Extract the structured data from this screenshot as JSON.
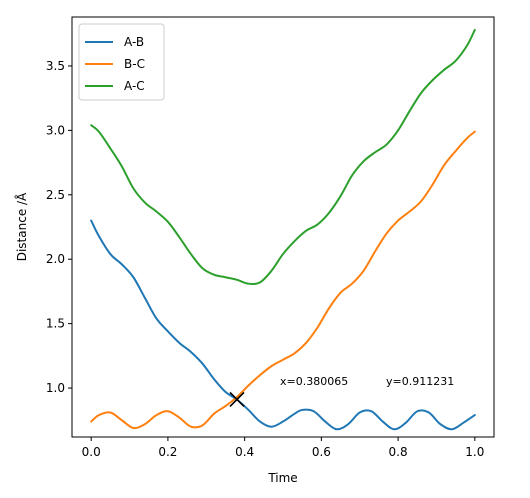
{
  "chart_data": {
    "type": "line",
    "title": "",
    "xlabel": "Time",
    "ylabel": "Distance /Å",
    "xlim": [
      -0.05,
      1.05
    ],
    "ylim": [
      0.62,
      3.88
    ],
    "xticks": [
      0.0,
      0.2,
      0.4,
      0.6,
      0.8,
      1.0
    ],
    "xtick_labels": [
      "0.0",
      "0.2",
      "0.4",
      "0.6",
      "0.8",
      "1.0"
    ],
    "yticks": [
      1.0,
      1.5,
      2.0,
      2.5,
      3.0,
      3.5
    ],
    "ytick_labels": [
      "1.0",
      "1.5",
      "2.0",
      "2.5",
      "3.0",
      "3.5"
    ],
    "grid": false,
    "legend_position": "top-left",
    "series": [
      {
        "name": "A-B",
        "color": "#1f77b4",
        "x": [
          0.0,
          0.02,
          0.05,
          0.08,
          0.11,
          0.14,
          0.17,
          0.2,
          0.23,
          0.26,
          0.29,
          0.32,
          0.35,
          0.38,
          0.41,
          0.44,
          0.47,
          0.5,
          0.53,
          0.55,
          0.58,
          0.61,
          0.64,
          0.67,
          0.7,
          0.73,
          0.76,
          0.79,
          0.82,
          0.85,
          0.88,
          0.91,
          0.94,
          0.97,
          1.0
        ],
        "y": [
          2.3,
          2.18,
          2.04,
          1.96,
          1.86,
          1.7,
          1.54,
          1.44,
          1.35,
          1.28,
          1.19,
          1.07,
          0.97,
          0.91,
          0.83,
          0.74,
          0.7,
          0.74,
          0.8,
          0.83,
          0.82,
          0.74,
          0.68,
          0.72,
          0.81,
          0.82,
          0.74,
          0.68,
          0.73,
          0.82,
          0.81,
          0.72,
          0.68,
          0.73,
          0.79
        ]
      },
      {
        "name": "B-C",
        "color": "#ff7f0e",
        "x": [
          0.0,
          0.02,
          0.05,
          0.08,
          0.11,
          0.14,
          0.17,
          0.2,
          0.23,
          0.26,
          0.29,
          0.32,
          0.35,
          0.38,
          0.41,
          0.44,
          0.47,
          0.5,
          0.53,
          0.56,
          0.59,
          0.62,
          0.65,
          0.68,
          0.71,
          0.74,
          0.77,
          0.8,
          0.83,
          0.86,
          0.89,
          0.92,
          0.95,
          0.98,
          1.0
        ],
        "y": [
          0.74,
          0.79,
          0.81,
          0.75,
          0.69,
          0.72,
          0.79,
          0.82,
          0.77,
          0.7,
          0.71,
          0.8,
          0.86,
          0.93,
          1.02,
          1.1,
          1.17,
          1.22,
          1.27,
          1.35,
          1.47,
          1.62,
          1.74,
          1.81,
          1.91,
          2.06,
          2.2,
          2.3,
          2.37,
          2.45,
          2.58,
          2.73,
          2.84,
          2.94,
          2.99
        ]
      },
      {
        "name": "A-C",
        "color": "#2ca02c",
        "x": [
          0.0,
          0.02,
          0.05,
          0.08,
          0.11,
          0.14,
          0.17,
          0.2,
          0.23,
          0.26,
          0.29,
          0.32,
          0.35,
          0.38,
          0.41,
          0.44,
          0.47,
          0.5,
          0.53,
          0.56,
          0.59,
          0.62,
          0.65,
          0.68,
          0.71,
          0.74,
          0.77,
          0.8,
          0.83,
          0.86,
          0.89,
          0.92,
          0.95,
          0.98,
          1.0
        ],
        "y": [
          3.04,
          2.99,
          2.86,
          2.72,
          2.55,
          2.44,
          2.37,
          2.29,
          2.17,
          2.04,
          1.93,
          1.88,
          1.86,
          1.84,
          1.81,
          1.82,
          1.91,
          2.04,
          2.14,
          2.22,
          2.27,
          2.36,
          2.49,
          2.65,
          2.76,
          2.83,
          2.89,
          3.0,
          3.15,
          3.29,
          3.39,
          3.47,
          3.54,
          3.66,
          3.78
        ]
      }
    ],
    "marker": {
      "symbol": "x",
      "x": 0.380065,
      "y": 0.911231,
      "color": "#000000"
    },
    "readout": {
      "x_text": "x=0.380065",
      "y_text": "y=0.911231"
    }
  }
}
